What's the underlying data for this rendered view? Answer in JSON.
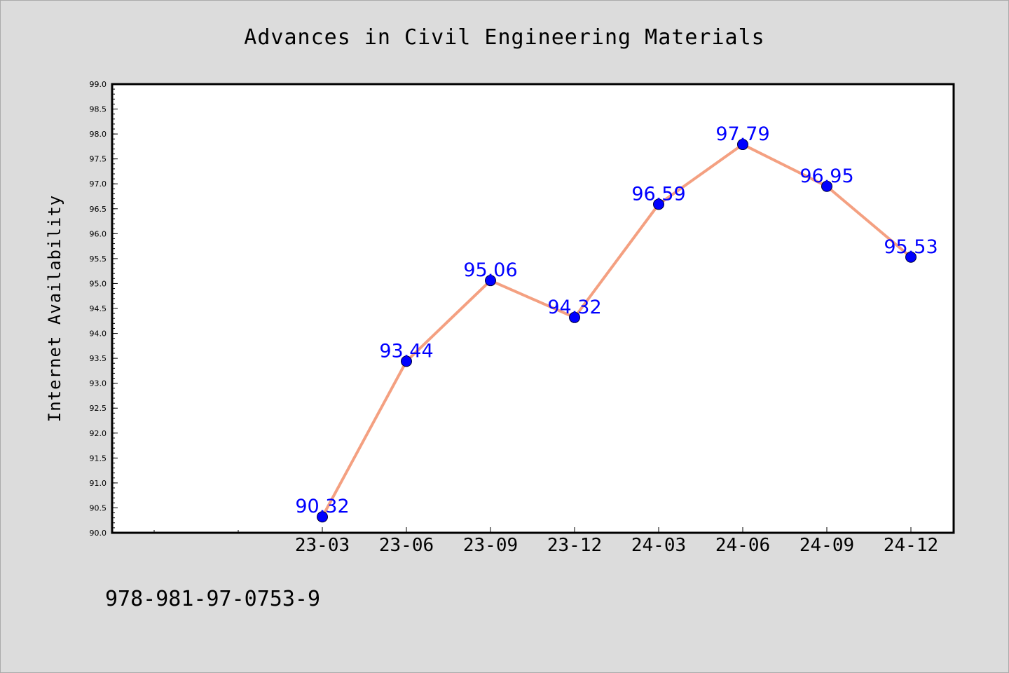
{
  "chart_data": {
    "type": "line",
    "title": "Advances in Civil Engineering Materials",
    "xlabel": "",
    "ylabel": "Internet Availability",
    "categories": [
      "23-03",
      "23-06",
      "23-09",
      "23-12",
      "24-03",
      "24-06",
      "24-09",
      "24-12"
    ],
    "values": [
      90.32,
      93.44,
      95.06,
      94.32,
      96.59,
      97.79,
      96.95,
      95.53
    ],
    "data_labels": [
      "90.32",
      "93.44",
      "95.06",
      "94.32",
      "96.59",
      "97.79",
      "96.95",
      "95.53"
    ],
    "ylim": [
      90.0,
      99.0
    ],
    "yticks": [
      "90.0",
      "90.5",
      "91.0",
      "91.5",
      "92.0",
      "92.5",
      "93.0",
      "93.5",
      "94.0",
      "94.5",
      "95.0",
      "95.5",
      "96.0",
      "96.5",
      "97.0",
      "97.5",
      "98.0",
      "98.5",
      "99.0"
    ],
    "grid": false,
    "line_color": "#f4a081",
    "marker_color": "#0000ff",
    "label_color": "#0000ff",
    "background_color": "#dcdcdc",
    "plot_background_color": "#ffffff"
  },
  "footnote": "978-981-97-0753-9"
}
